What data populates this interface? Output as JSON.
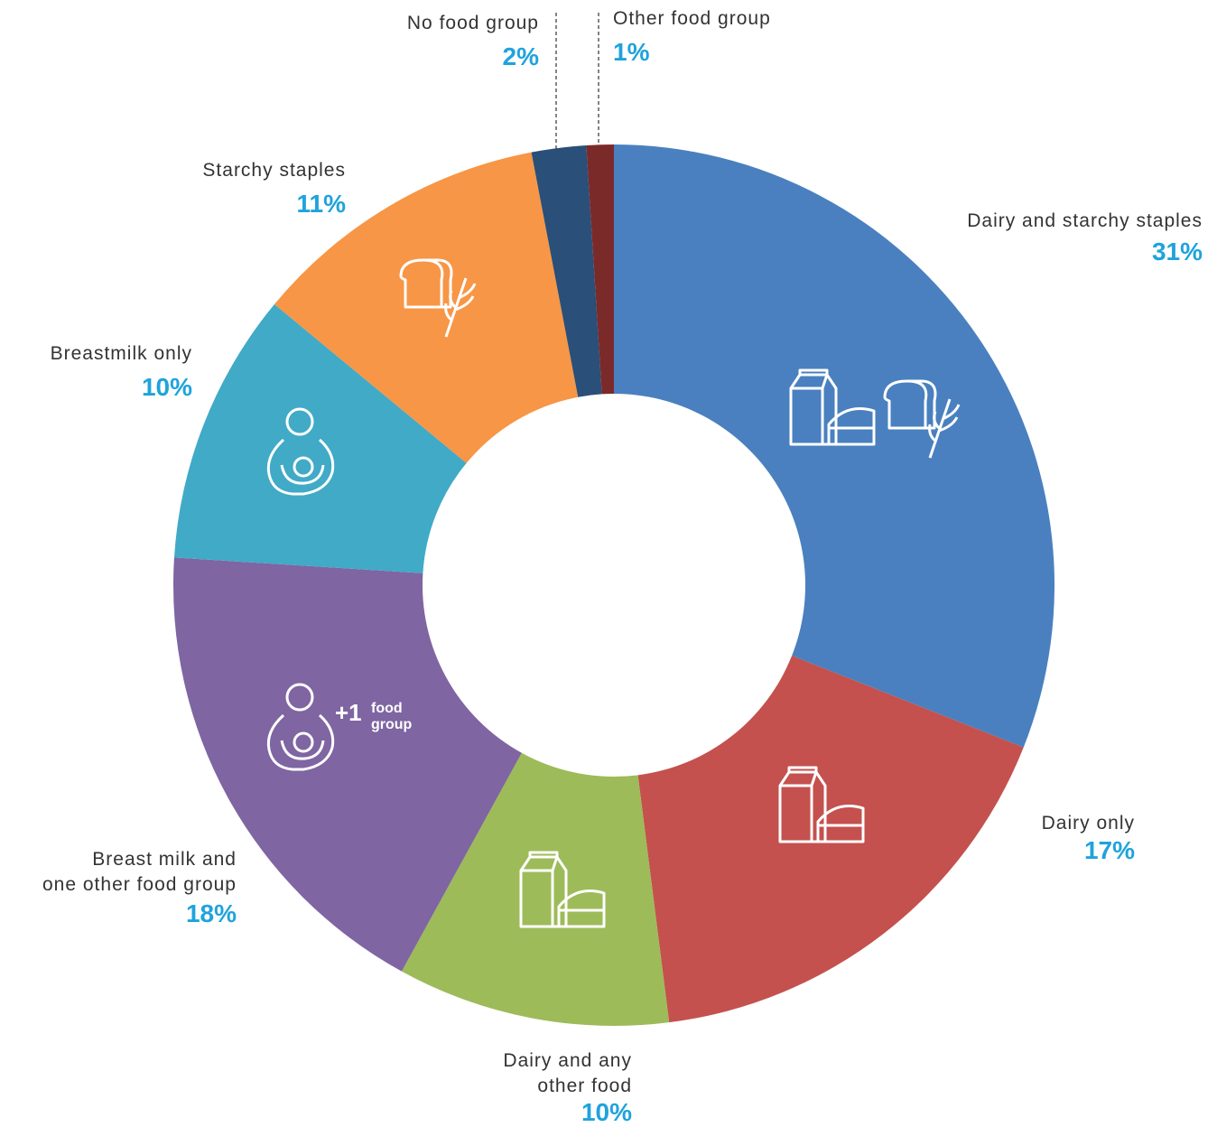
{
  "chart_data": {
    "type": "donut",
    "categories": [
      "Dairy and starchy staples",
      "Dairy only",
      "Dairy and any\nother food",
      "Breast milk and\none other food group",
      "Breastmilk only",
      "Starchy staples",
      "No food group",
      "Other food group"
    ],
    "values": [
      31,
      17,
      10,
      18,
      10,
      11,
      2,
      1
    ],
    "value_labels": [
      "31%",
      "17%",
      "10%",
      "18%",
      "10%",
      "11%",
      "2%",
      "1%"
    ],
    "colors": [
      "#4a80bf",
      "#c4514e",
      "#9dbb59",
      "#7f65a2",
      "#41aac6",
      "#f79646",
      "#2a4f78",
      "#7b2a2a"
    ],
    "annotations": [
      "+1",
      "food",
      "group"
    ]
  }
}
